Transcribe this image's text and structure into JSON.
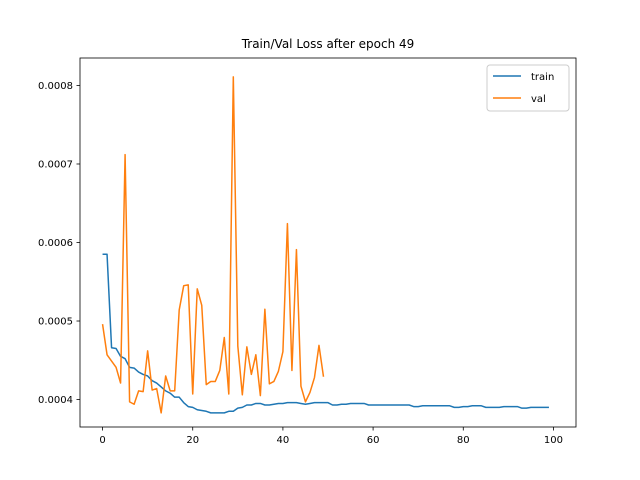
{
  "chart_data": {
    "type": "line",
    "title": "Train/Val Loss after epoch 49",
    "xlabel": "",
    "ylabel": "",
    "xlim": [
      -5,
      105
    ],
    "ylim": [
      0.000365,
      0.000835
    ],
    "xticks": [
      0,
      20,
      40,
      60,
      80,
      100
    ],
    "yticks": [
      0.0004,
      0.0005,
      0.0006,
      0.0007,
      0.0008
    ],
    "ytick_labels": [
      "0.0004",
      "0.0005",
      "0.0006",
      "0.0007",
      "0.0008"
    ],
    "grid": false,
    "legend_position": "top-right",
    "series": [
      {
        "name": "train",
        "color": "#1f77b4",
        "x": [
          0,
          1,
          2,
          3,
          4,
          5,
          6,
          7,
          8,
          9,
          10,
          11,
          12,
          13,
          14,
          15,
          16,
          17,
          18,
          19,
          20,
          21,
          22,
          23,
          24,
          25,
          26,
          27,
          28,
          29,
          30,
          31,
          32,
          33,
          34,
          35,
          36,
          37,
          38,
          39,
          40,
          41,
          42,
          43,
          44,
          45,
          46,
          47,
          48,
          49,
          50,
          51,
          52,
          53,
          54,
          55,
          56,
          57,
          58,
          59,
          60,
          61,
          62,
          63,
          64,
          65,
          66,
          67,
          68,
          69,
          70,
          71,
          72,
          73,
          74,
          75,
          76,
          77,
          78,
          79,
          80,
          81,
          82,
          83,
          84,
          85,
          86,
          87,
          88,
          89,
          90,
          91,
          92,
          93,
          94,
          95,
          96,
          97,
          98,
          99
        ],
        "values": [
          0.000585,
          0.000585,
          0.000466,
          0.000465,
          0.000455,
          0.000452,
          0.000441,
          0.00044,
          0.000435,
          0.000432,
          0.00043,
          0.000424,
          0.000421,
          0.000416,
          0.000411,
          0.000408,
          0.000403,
          0.000403,
          0.000396,
          0.000391,
          0.00039,
          0.000387,
          0.000386,
          0.000385,
          0.000383,
          0.000383,
          0.000383,
          0.000383,
          0.000385,
          0.000385,
          0.000389,
          0.00039,
          0.000393,
          0.000393,
          0.000395,
          0.000395,
          0.000393,
          0.000393,
          0.000394,
          0.000395,
          0.000395,
          0.000396,
          0.000396,
          0.000396,
          0.000395,
          0.000394,
          0.000395,
          0.000396,
          0.000396,
          0.000396,
          0.000396,
          0.000393,
          0.000393,
          0.000394,
          0.000394,
          0.000395,
          0.000395,
          0.000395,
          0.000395,
          0.000393,
          0.000393,
          0.000393,
          0.000393,
          0.000393,
          0.000393,
          0.000393,
          0.000393,
          0.000393,
          0.000393,
          0.000391,
          0.000391,
          0.000392,
          0.000392,
          0.000392,
          0.000392,
          0.000392,
          0.000392,
          0.000392,
          0.00039,
          0.00039,
          0.000391,
          0.000391,
          0.000392,
          0.000392,
          0.000392,
          0.00039,
          0.00039,
          0.00039,
          0.00039,
          0.000391,
          0.000391,
          0.000391,
          0.000391,
          0.000389,
          0.000389,
          0.00039,
          0.00039,
          0.00039,
          0.00039,
          0.00039
        ]
      },
      {
        "name": "val",
        "color": "#ff7f0e",
        "x": [
          0,
          1,
          2,
          3,
          4,
          5,
          6,
          7,
          8,
          9,
          10,
          11,
          12,
          13,
          14,
          15,
          16,
          17,
          18,
          19,
          20,
          21,
          22,
          23,
          24,
          25,
          26,
          27,
          28,
          29,
          30,
          31,
          32,
          33,
          34,
          35,
          36,
          37,
          38,
          39,
          40,
          41,
          42,
          43,
          44,
          45,
          46,
          47,
          48,
          49
        ],
        "values": [
          0.000496,
          0.000457,
          0.000449,
          0.000441,
          0.000421,
          0.000712,
          0.000397,
          0.000394,
          0.000411,
          0.00041,
          0.000462,
          0.000412,
          0.000414,
          0.000383,
          0.00043,
          0.000411,
          0.000411,
          0.000514,
          0.000545,
          0.000546,
          0.000407,
          0.000541,
          0.00052,
          0.000419,
          0.000423,
          0.000423,
          0.000437,
          0.000479,
          0.000407,
          0.000811,
          0.000468,
          0.000406,
          0.000467,
          0.000432,
          0.000457,
          0.000405,
          0.000515,
          0.00042,
          0.000423,
          0.000436,
          0.000461,
          0.000624,
          0.000437,
          0.000591,
          0.000417,
          0.000397,
          0.000409,
          0.000428,
          0.000469,
          0.000429
        ]
      }
    ]
  }
}
